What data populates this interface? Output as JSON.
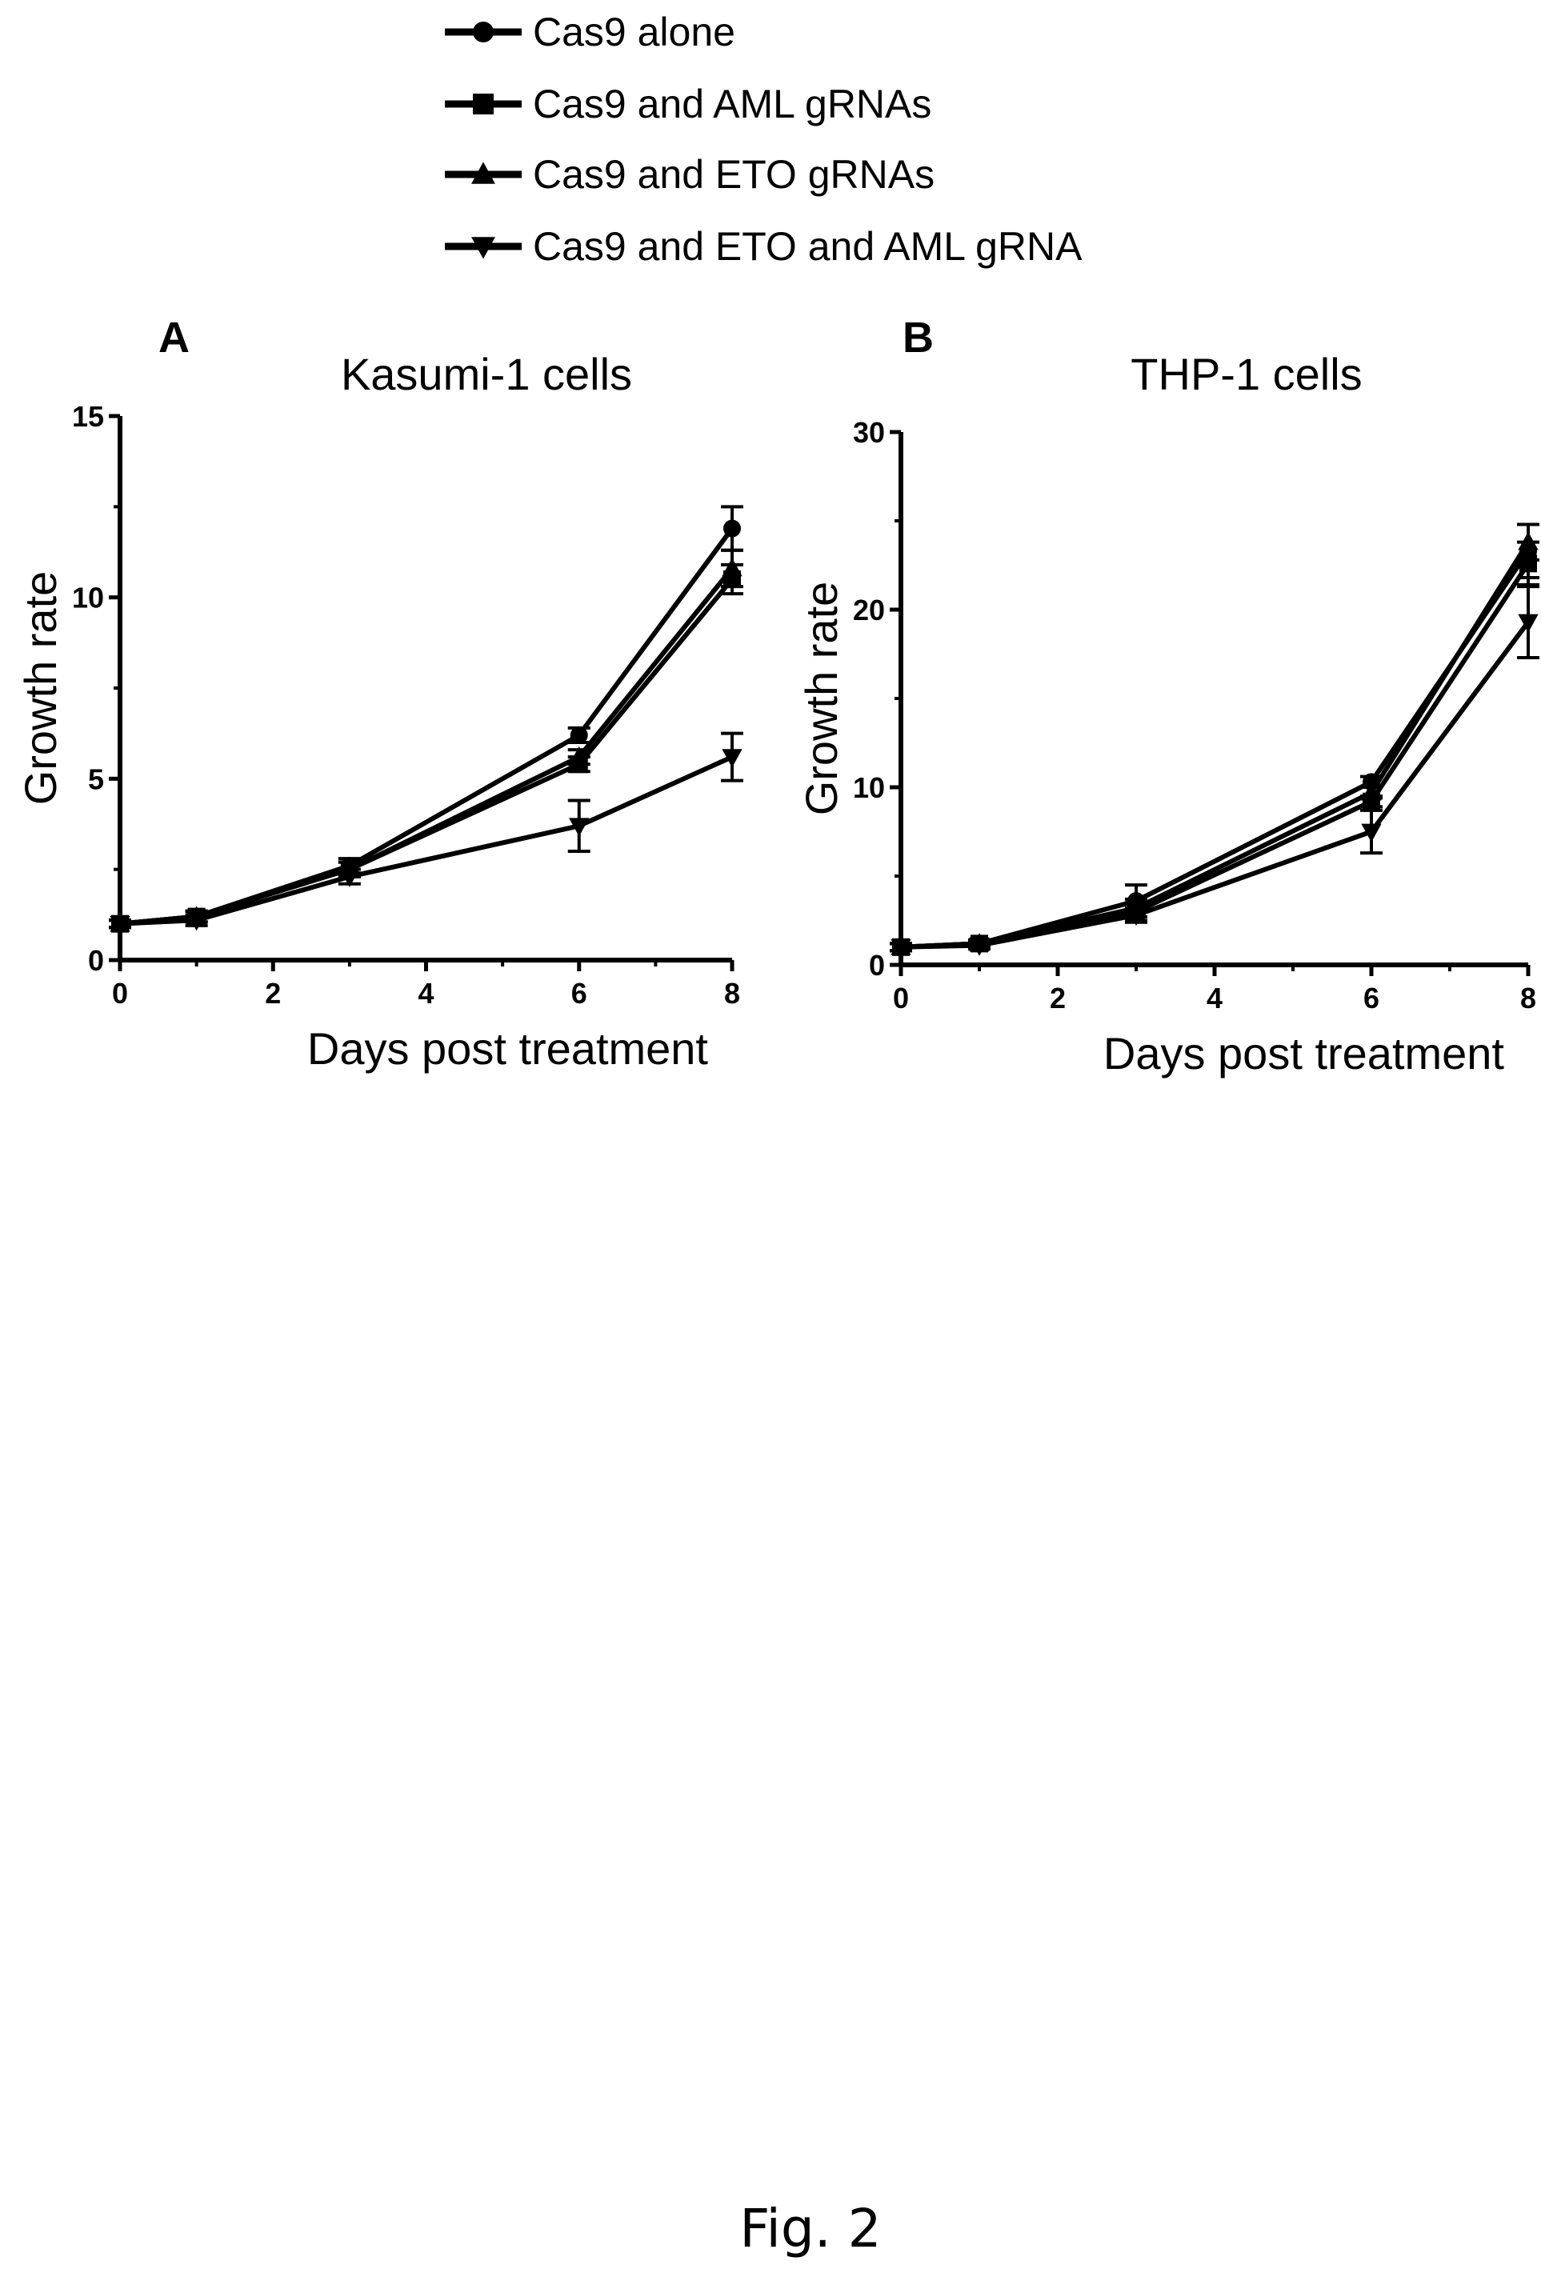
{
  "legend": [
    {
      "label": "Cas9 alone",
      "marker": "circle"
    },
    {
      "label": "Cas9 and AML gRNAs",
      "marker": "square"
    },
    {
      "label": "Cas9 and ETO  gRNAs",
      "marker": "triangle-up"
    },
    {
      "label": "Cas9 and ETO and AML gRNA",
      "marker": "triangle-down"
    }
  ],
  "chart_data": [
    {
      "type": "line",
      "panel": "A",
      "title": "Kasumi-1 cells",
      "xlabel": "Days post treatment",
      "ylabel": "Growth rate",
      "xlim": [
        0,
        8
      ],
      "ylim": [
        0,
        15
      ],
      "xticks": [
        0,
        2,
        4,
        6,
        8
      ],
      "yticks": [
        0,
        5,
        10,
        15
      ],
      "x": [
        0,
        1,
        3,
        6,
        8
      ],
      "series": [
        {
          "name": "Cas9 alone",
          "marker": "circle",
          "values": [
            1.0,
            1.2,
            2.6,
            6.2,
            11.9
          ],
          "errors": [
            0.1,
            0.15,
            0.2,
            0.2,
            0.6
          ]
        },
        {
          "name": "Cas9 and AML gRNAs",
          "marker": "square",
          "values": [
            1.0,
            1.2,
            2.5,
            5.4,
            10.5
          ],
          "errors": [
            0.1,
            0.15,
            0.2,
            0.2,
            0.4
          ]
        },
        {
          "name": "Cas9 and ETO  gRNAs",
          "marker": "triangle-up",
          "values": [
            1.0,
            1.2,
            2.5,
            5.6,
            10.8
          ],
          "errors": [
            0.1,
            0.15,
            0.2,
            0.2,
            0.5
          ]
        },
        {
          "name": "Cas9 and ETO and AML gRNA",
          "marker": "triangle-down",
          "values": [
            1.0,
            1.1,
            2.3,
            3.7,
            5.6
          ],
          "errors": [
            0.1,
            0.15,
            0.2,
            0.7,
            0.65
          ]
        }
      ]
    },
    {
      "type": "line",
      "panel": "B",
      "title": "THP-1 cells",
      "xlabel": "Days post treatment",
      "ylabel": "Growth rate",
      "xlim": [
        0,
        8
      ],
      "ylim": [
        0,
        30
      ],
      "xticks": [
        0,
        2,
        4,
        6,
        8
      ],
      "yticks": [
        0,
        10,
        20,
        30
      ],
      "x": [
        0,
        1,
        3,
        6,
        8
      ],
      "series": [
        {
          "name": "Cas9 alone",
          "marker": "circle",
          "values": [
            1.0,
            1.2,
            3.6,
            10.3,
            23.3
          ],
          "errors": [
            0.2,
            0.2,
            0.9,
            0.3,
            1.5
          ]
        },
        {
          "name": "Cas9 and AML gRNAs",
          "marker": "square",
          "values": [
            1.0,
            1.2,
            3.0,
            9.2,
            22.6
          ],
          "errors": [
            0.2,
            0.2,
            0.5,
            0.3,
            1.2
          ]
        },
        {
          "name": "Cas9 and ETO  gRNAs",
          "marker": "triangle-up",
          "values": [
            1.0,
            1.2,
            3.2,
            9.7,
            23.8
          ],
          "errors": [
            0.2,
            0.2,
            0.5,
            0.3,
            1.0
          ]
        },
        {
          "name": "Cas9 and ETO and AML gRNA",
          "marker": "triangle-down",
          "values": [
            1.0,
            1.1,
            2.8,
            7.5,
            19.3
          ],
          "errors": [
            0.2,
            0.2,
            0.4,
            1.2,
            2.0
          ]
        }
      ]
    }
  ],
  "caption": "Fig. 2"
}
